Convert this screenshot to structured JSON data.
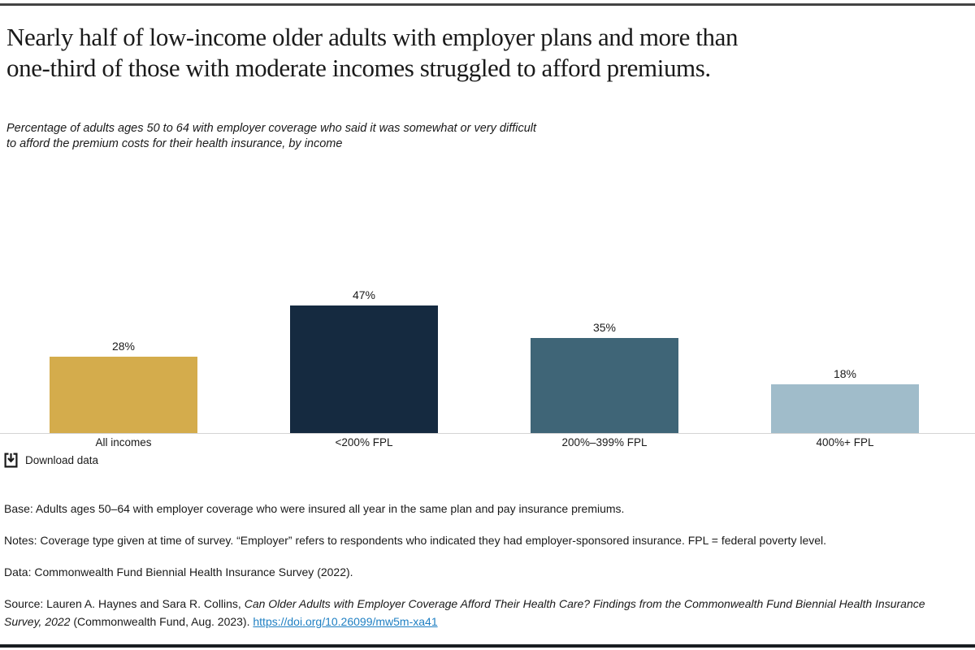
{
  "header": {
    "title": "Nearly half of low-income older adults with employer plans and more than\none-third of those with moderate incomes struggled to afford premiums.",
    "subtitle": "Percentage of adults ages 50 to 64 with employer coverage who said it was somewhat or very difficult\nto afford the premium costs for their health insurance, by income"
  },
  "chart_data": {
    "type": "bar",
    "categories": [
      "All incomes",
      "<200% FPL",
      "200%–399% FPL",
      "400%+ FPL"
    ],
    "values": [
      28,
      47,
      35,
      18
    ],
    "value_labels": [
      "28%",
      "47%",
      "35%",
      "18%"
    ],
    "bar_colors": [
      "#D4AC4C",
      "#152A40",
      "#3F6577",
      "#A0BCCA"
    ],
    "title": "Nearly half of low-income older adults with employer plans and more than one-third of those with moderate incomes struggled to afford premiums.",
    "subtitle": "Percentage of adults ages 50 to 64 with employer coverage who said it was somewhat or very difficult to afford the premium costs for their health insurance, by income",
    "xlabel": "",
    "ylabel": "",
    "ylim": [
      0,
      50
    ],
    "grid": false,
    "legend": "none",
    "unit": "%"
  },
  "toolbar": {
    "download_label": "Download data"
  },
  "notes": {
    "base": "Base: Adults ages 50–64 with employer coverage who were insured all year in the same plan and pay insurance premiums.",
    "notes": "Notes: Coverage type given at time of survey. “Employer” refers to respondents who indicated they had employer-sponsored insurance. FPL = federal poverty level.",
    "data": "Data: Commonwealth Fund Biennial Health Insurance Survey (2022).",
    "source": {
      "prefix": "Source: Lauren A. Haynes and Sara R. Collins, ",
      "citation": "Can Older Adults with Employer Coverage Afford Their Health Care? Findings from the Commonwealth Fund Biennial Health Insurance Survey, 2022",
      "suffix": " (Commonwealth Fund, Aug. 2023). ",
      "link": "https://doi.org/10.26099/mw5m-xa41"
    }
  },
  "colors": {
    "text": "#1a1a1a",
    "link": "#2080c3",
    "axis_line": "#d4d4d4",
    "top_rule": "#2a2a2a",
    "bottom_rule": "#191d21"
  }
}
